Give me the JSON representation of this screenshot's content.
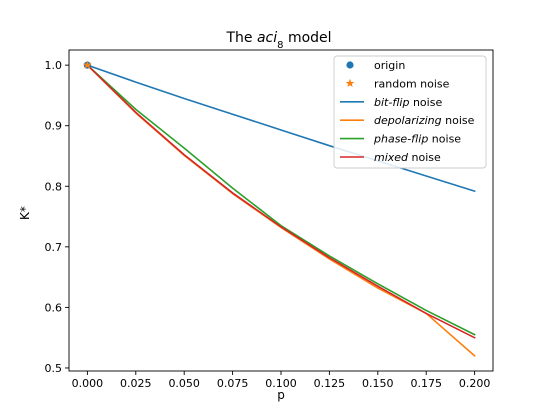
{
  "chart_data": {
    "type": "line",
    "title_prefix": "The ",
    "title_italic": "aci",
    "title_subscript": "8",
    "title_suffix": " model",
    "xlabel": "p",
    "ylabel": "K*",
    "xlim": [
      -0.0095,
      0.2095
    ],
    "ylim": [
      0.495,
      1.025
    ],
    "xticks": [
      0.0,
      0.025,
      0.05,
      0.075,
      0.1,
      0.125,
      0.15,
      0.175,
      0.2
    ],
    "xtick_labels": [
      "0.000",
      "0.025",
      "0.050",
      "0.075",
      "0.100",
      "0.125",
      "0.150",
      "0.175",
      "0.200"
    ],
    "yticks": [
      0.5,
      0.6,
      0.7,
      0.8,
      0.9,
      1.0
    ],
    "ytick_labels": [
      "0.5",
      "0.6",
      "0.7",
      "0.8",
      "0.9",
      "1.0"
    ],
    "grid": false,
    "legend_position": "top-right",
    "x": [
      0.0,
      0.025,
      0.05,
      0.075,
      0.1,
      0.125,
      0.15,
      0.175,
      0.2
    ],
    "series": [
      {
        "name": "bit-flip",
        "name_italic": "bit-flip",
        "name_suffix": " noise",
        "color": "#1f77b4",
        "values": [
          1.0,
          0.972,
          0.945,
          0.919,
          0.893,
          0.867,
          0.842,
          0.817,
          0.792
        ]
      },
      {
        "name": "depolarizing",
        "name_italic": "depolarizing",
        "name_suffix": " noise",
        "color": "#ff7f0e",
        "values": [
          1.0,
          0.921,
          0.851,
          0.788,
          0.732,
          0.68,
          0.632,
          0.59,
          0.52
        ]
      },
      {
        "name": "phase-flip",
        "name_italic": "phase-flip",
        "name_suffix": " noise",
        "color": "#2ca02c",
        "values": [
          1.0,
          0.927,
          0.863,
          0.797,
          0.735,
          0.685,
          0.639,
          0.595,
          0.555
        ]
      },
      {
        "name": "mixed",
        "name_italic": "mixed",
        "name_suffix": " noise",
        "color": "#d62728",
        "values": [
          1.0,
          0.922,
          0.852,
          0.789,
          0.733,
          0.682,
          0.635,
          0.59,
          0.55
        ]
      }
    ],
    "markers": [
      {
        "name": "origin",
        "label": "origin",
        "shape": "circle",
        "color": "#1f77b4",
        "x": 0.0,
        "y": 1.0
      },
      {
        "name": "random noise",
        "label": "random noise",
        "shape": "star",
        "color": "#ff7f0e",
        "x": 0.0,
        "y": 1.0
      }
    ]
  }
}
